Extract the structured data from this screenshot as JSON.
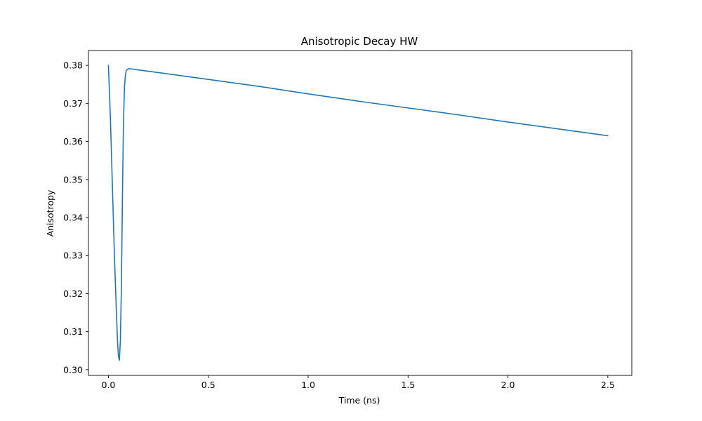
{
  "chart_data": {
    "type": "line",
    "title": "Anisotropic Decay HW",
    "xlabel": "Time (ns)",
    "ylabel": "Anisotropy",
    "xlim": [
      -0.1,
      2.62
    ],
    "ylim": [
      0.2985,
      0.3839
    ],
    "xticks": [
      0.0,
      0.5,
      1.0,
      1.5,
      2.0,
      2.5
    ],
    "xtick_labels": [
      "0.0",
      "0.5",
      "1.0",
      "1.5",
      "2.0",
      "2.5"
    ],
    "yticks": [
      0.3,
      0.31,
      0.32,
      0.33,
      0.34,
      0.35,
      0.36,
      0.37,
      0.38
    ],
    "ytick_labels": [
      "0.30",
      "0.31",
      "0.32",
      "0.33",
      "0.34",
      "0.35",
      "0.36",
      "0.37",
      "0.38"
    ],
    "grid": false,
    "legend": "none",
    "series": [
      {
        "color": "#1f77b4",
        "x": [
          0.0,
          0.01,
          0.02,
          0.03,
          0.04,
          0.045,
          0.05,
          0.055,
          0.06,
          0.065,
          0.07,
          0.075,
          0.08,
          0.085,
          0.09,
          0.1,
          0.11,
          0.15,
          0.25,
          0.5,
          0.75,
          1.0,
          1.25,
          1.5,
          1.75,
          2.0,
          2.25,
          2.5
        ],
        "y": [
          0.38,
          0.366,
          0.348,
          0.33,
          0.315,
          0.308,
          0.3035,
          0.3025,
          0.308,
          0.322,
          0.345,
          0.364,
          0.374,
          0.3775,
          0.3787,
          0.3791,
          0.3791,
          0.3788,
          0.3781,
          0.3763,
          0.3745,
          0.3725,
          0.3706,
          0.3688,
          0.367,
          0.3651,
          0.3633,
          0.3615
        ]
      }
    ]
  }
}
